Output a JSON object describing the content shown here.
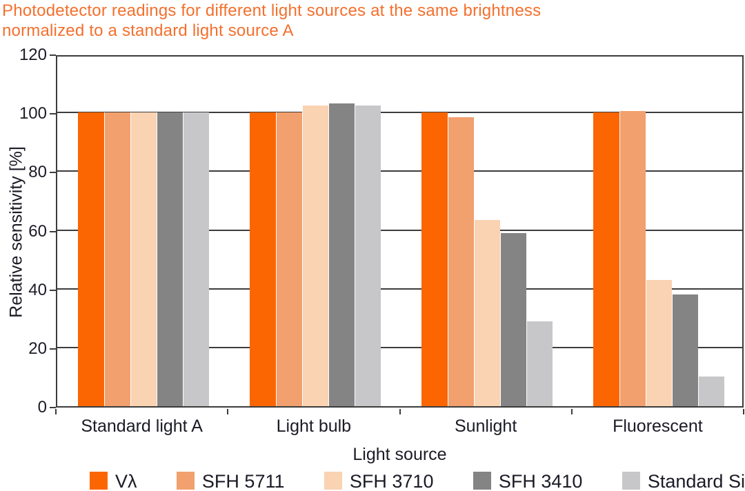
{
  "title": {
    "line1": "Photodetector readings for different light sources at the same brightness",
    "line2": "normalized to a standard light source A",
    "color": "#F3702E"
  },
  "chart_data": {
    "type": "bar",
    "title": "Photodetector readings for different light sources at the same brightness normalized to a standard light source A",
    "xlabel": "Light source",
    "ylabel": "Relative sensitivity [%]",
    "ylim": [
      0,
      120
    ],
    "yticks": [
      0,
      20,
      40,
      60,
      80,
      100,
      120
    ],
    "grid": "horizontal",
    "legend_position": "bottom",
    "categories": [
      "Standard light A",
      "Light bulb",
      "Sunlight",
      "Fluorescent"
    ],
    "series": [
      {
        "name": "Vλ",
        "color": "#FB6602",
        "values": [
          100,
          100,
          100,
          100
        ]
      },
      {
        "name": "SFH 5711",
        "color": "#F2A06E",
        "values": [
          100,
          100,
          98.5,
          100.5
        ]
      },
      {
        "name": "SFH 3710",
        "color": "#F9D3B2",
        "values": [
          100,
          102.5,
          63.5,
          43
        ]
      },
      {
        "name": "SFH 3410",
        "color": "#848484",
        "values": [
          100,
          103,
          59,
          38
        ]
      },
      {
        "name": "Standard Si",
        "color": "#C7C7C9",
        "values": [
          100,
          102.5,
          29,
          10
        ]
      }
    ],
    "axis_color": "#3C3C3C",
    "text_color": "#1B1B26"
  }
}
